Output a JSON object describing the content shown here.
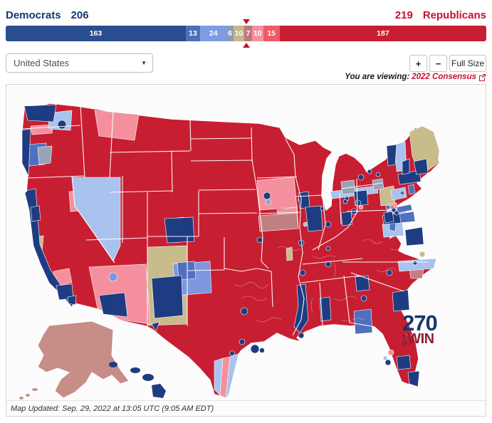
{
  "header": {
    "democrats_label": "Democrats",
    "democrats_seats": "206",
    "republicans_seats": "219",
    "republicans_label": "Republicans",
    "democrats_color": "#17376e",
    "republicans_color": "#c41230"
  },
  "seat_bar": {
    "total_seats": 435,
    "majority_line_seats": 218,
    "marker_color": "#c41230",
    "segments": [
      {
        "name": "safe-dem",
        "seats": 163,
        "label": "163",
        "color": "#2a4d8f"
      },
      {
        "name": "likely-dem",
        "seats": 13,
        "label": "13",
        "color": "#4f70b5"
      },
      {
        "name": "lean-dem",
        "seats": 24,
        "label": "24",
        "color": "#7e9ce2"
      },
      {
        "name": "tilt-dem",
        "seats": 6,
        "label": "6",
        "color": "#8e9ab9"
      },
      {
        "name": "toss-up",
        "seats": 10,
        "label": "10",
        "color": "#c2b88a"
      },
      {
        "name": "tilt-rep",
        "seats": 7,
        "label": "7",
        "color": "#bd7a7e"
      },
      {
        "name": "lean-rep",
        "seats": 10,
        "label": "10",
        "color": "#f4909e"
      },
      {
        "name": "likely-rep",
        "seats": 15,
        "label": "15",
        "color": "#ee5a68"
      },
      {
        "name": "safe-rep",
        "seats": 187,
        "label": "187",
        "color": "#c81e32"
      }
    ]
  },
  "controls": {
    "region_select_value": "United States",
    "zoom_in_label": "+",
    "zoom_out_label": "−",
    "full_size_label": "Full Size"
  },
  "viewing": {
    "prefix": "You are viewing: ",
    "map_name": "2022 Consensus",
    "link_color": "#c41230"
  },
  "map": {
    "logo": {
      "number": "270",
      "to_letters": "TO",
      "win": "WIN",
      "number_color": "#17376e",
      "win_color": "#8e1f33"
    },
    "footer": "Map Updated: Sep. 29, 2022 at 13:05 UTC (9:05 AM EDT)",
    "palette": {
      "safe_rep": "#c81e32",
      "safe_dem": "#1e3c82",
      "likely_dem": "#5070bf",
      "lean_dem": "#7e97dd",
      "tilt_dem_blue": "#a9c2ee",
      "tilt_dem_gray": "#9aa2b5",
      "toss_up": "#c8bb8c",
      "tilt_rep": "#c08083",
      "lean_rep": "#f4909e",
      "alaska": "#c68e87",
      "hawaii": "#1e3c82"
    }
  }
}
